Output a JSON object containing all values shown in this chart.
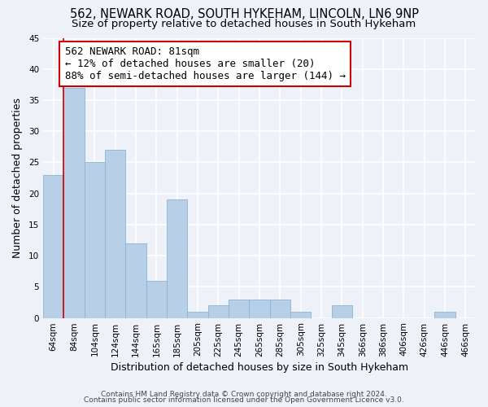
{
  "title": "562, NEWARK ROAD, SOUTH HYKEHAM, LINCOLN, LN6 9NP",
  "subtitle": "Size of property relative to detached houses in South Hykeham",
  "xlabel": "Distribution of detached houses by size in South Hykeham",
  "ylabel": "Number of detached properties",
  "bar_color": "#b8cfe8",
  "bar_edge_color": "#8ab4d4",
  "categories": [
    "64sqm",
    "84sqm",
    "104sqm",
    "124sqm",
    "144sqm",
    "165sqm",
    "185sqm",
    "205sqm",
    "225sqm",
    "245sqm",
    "265sqm",
    "285sqm",
    "305sqm",
    "325sqm",
    "345sqm",
    "366sqm",
    "386sqm",
    "406sqm",
    "426sqm",
    "446sqm",
    "466sqm"
  ],
  "values": [
    23,
    37,
    25,
    27,
    12,
    6,
    19,
    1,
    2,
    3,
    3,
    3,
    1,
    0,
    2,
    0,
    0,
    0,
    0,
    1,
    0
  ],
  "ylim": [
    0,
    45
  ],
  "yticks": [
    0,
    5,
    10,
    15,
    20,
    25,
    30,
    35,
    40,
    45
  ],
  "annotation_title": "562 NEWARK ROAD: 81sqm",
  "annotation_line1": "← 12% of detached houses are smaller (20)",
  "annotation_line2": "88% of semi-detached houses are larger (144) →",
  "annotation_box_color": "#ffffff",
  "annotation_box_edge": "#cc0000",
  "property_line_color": "#cc0000",
  "footer1": "Contains HM Land Registry data © Crown copyright and database right 2024.",
  "footer2": "Contains public sector information licensed under the Open Government Licence v3.0.",
  "background_color": "#eef2f8",
  "grid_color": "#ffffff",
  "title_fontsize": 10.5,
  "subtitle_fontsize": 9.5,
  "axis_label_fontsize": 9,
  "tick_fontsize": 7.5,
  "annotation_fontsize": 9,
  "footer_fontsize": 6.5
}
